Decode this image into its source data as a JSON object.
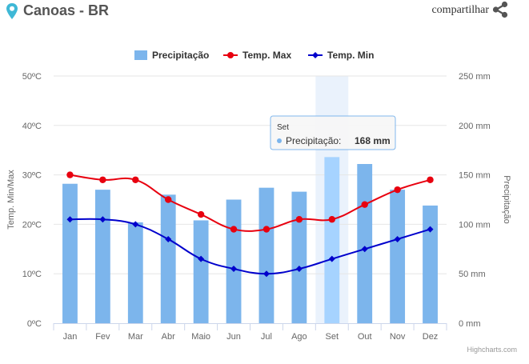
{
  "header": {
    "location": "Canoas - BR",
    "share_label": "compartilhar",
    "pin_icon": "location-pin-icon",
    "share_icon": "share-icon"
  },
  "chart_data": {
    "type": "bar+line",
    "categories": [
      "Jan",
      "Fev",
      "Mar",
      "Abr",
      "Maio",
      "Jun",
      "Jul",
      "Ago",
      "Set",
      "Out",
      "Nov",
      "Dez"
    ],
    "series": [
      {
        "name": "Precipitação",
        "type": "bar",
        "axis": "right",
        "color": "#7cb5ec",
        "highlight_color": "#a6d3ff",
        "values": [
          141,
          135,
          102,
          130,
          104,
          125,
          137,
          133,
          168,
          161,
          135,
          119
        ]
      },
      {
        "name": "Temp. Max",
        "type": "line",
        "axis": "left",
        "color": "#e8000f",
        "values": [
          30,
          29,
          29,
          25,
          22,
          19,
          19,
          21,
          21,
          24,
          27,
          29
        ]
      },
      {
        "name": "Temp. Min",
        "type": "line",
        "axis": "left",
        "color": "#0000cc",
        "values": [
          21,
          21,
          20,
          17,
          13,
          11,
          10,
          11,
          13,
          15,
          17,
          19
        ]
      }
    ],
    "y_left": {
      "label": "Temp. Min/Max",
      "min": 0,
      "max": 50,
      "step": 10,
      "unit": "ºC"
    },
    "y_right": {
      "label": "Precipitação",
      "min": 0,
      "max": 250,
      "step": 50,
      "unit": " mm"
    },
    "grid": true,
    "legend_position": "top-center",
    "tooltip": {
      "category": "Set",
      "series": "Precipitação",
      "label": "Precipitação",
      "value_text": "168 mm"
    },
    "credit": "Highcharts.com"
  }
}
